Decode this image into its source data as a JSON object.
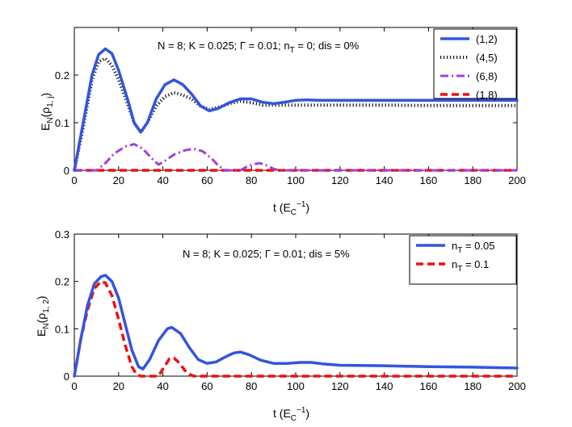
{
  "chart_data": [
    {
      "type": "line",
      "title": "",
      "annotation": "N = 8; K = 0.025; Γ = 0.01; n_T = 0; dis = 0%",
      "annotation_parts": {
        "a": "N = 8; K = 0.025; Γ = 0.01; n",
        "sub": "T",
        "b": " = 0; dis = 0%"
      },
      "xlabel": {
        "main": "t (E",
        "sub": "C",
        "sup": "−1",
        "close": ")"
      },
      "ylabel": {
        "main": "E",
        "sub1": "N",
        "mid": "(ρ",
        "sub2": "1, j",
        "close": ")"
      },
      "xlim": [
        0,
        200
      ],
      "ylim": [
        0,
        0.3
      ],
      "xticks": [
        0,
        20,
        40,
        60,
        80,
        100,
        120,
        140,
        160,
        180,
        200
      ],
      "xtick_labels": [
        "0",
        "20",
        "40",
        "60",
        "80",
        "100",
        "120",
        "140",
        "160",
        "180",
        "200"
      ],
      "yticks": [
        0,
        0.1,
        0.2
      ],
      "ytick_labels": [
        "0",
        "0.1",
        "0.2"
      ],
      "legend_position": "top-right",
      "series": [
        {
          "name": "(1,2)",
          "color": "#3355dd",
          "style": "solid",
          "points": [
            [
              0,
              0
            ],
            [
              4,
              0.1
            ],
            [
              8,
              0.2
            ],
            [
              11,
              0.243
            ],
            [
              14,
              0.255
            ],
            [
              17,
              0.245
            ],
            [
              20,
              0.21
            ],
            [
              24,
              0.15
            ],
            [
              27,
              0.1
            ],
            [
              30,
              0.08
            ],
            [
              33,
              0.1
            ],
            [
              37,
              0.15
            ],
            [
              41,
              0.18
            ],
            [
              45,
              0.19
            ],
            [
              49,
              0.18
            ],
            [
              53,
              0.16
            ],
            [
              57,
              0.135
            ],
            [
              61,
              0.125
            ],
            [
              65,
              0.13
            ],
            [
              70,
              0.142
            ],
            [
              75,
              0.15
            ],
            [
              80,
              0.15
            ],
            [
              85,
              0.143
            ],
            [
              90,
              0.14
            ],
            [
              95,
              0.143
            ],
            [
              100,
              0.147
            ],
            [
              105,
              0.148
            ],
            [
              110,
              0.147
            ],
            [
              120,
              0.147
            ],
            [
              140,
              0.147
            ],
            [
              160,
              0.147
            ],
            [
              180,
              0.147
            ],
            [
              200,
              0.147
            ]
          ]
        },
        {
          "name": "(4,5)",
          "color": "#111111",
          "style": "dotted",
          "points": [
            [
              0,
              0
            ],
            [
              4,
              0.09
            ],
            [
              8,
              0.19
            ],
            [
              11,
              0.228
            ],
            [
              14,
              0.235
            ],
            [
              17,
              0.22
            ],
            [
              20,
              0.19
            ],
            [
              24,
              0.14
            ],
            [
              27,
              0.1
            ],
            [
              30,
              0.08
            ],
            [
              33,
              0.1
            ],
            [
              37,
              0.135
            ],
            [
              41,
              0.155
            ],
            [
              45,
              0.163
            ],
            [
              49,
              0.158
            ],
            [
              53,
              0.15
            ],
            [
              57,
              0.135
            ],
            [
              61,
              0.128
            ],
            [
              65,
              0.132
            ],
            [
              70,
              0.14
            ],
            [
              75,
              0.145
            ],
            [
              80,
              0.142
            ],
            [
              85,
              0.137
            ],
            [
              90,
              0.137
            ],
            [
              100,
              0.137
            ],
            [
              120,
              0.137
            ],
            [
              140,
              0.137
            ],
            [
              160,
              0.136
            ],
            [
              180,
              0.136
            ],
            [
              200,
              0.136
            ]
          ]
        },
        {
          "name": "(6,8)",
          "color": "#a040e0",
          "style": "dashdot",
          "points": [
            [
              0,
              0
            ],
            [
              10,
              0
            ],
            [
              14,
              0.015
            ],
            [
              18,
              0.035
            ],
            [
              23,
              0.05
            ],
            [
              27,
              0.055
            ],
            [
              31,
              0.045
            ],
            [
              35,
              0.025
            ],
            [
              38,
              0.012
            ],
            [
              41,
              0.02
            ],
            [
              45,
              0.033
            ],
            [
              50,
              0.042
            ],
            [
              54,
              0.045
            ],
            [
              58,
              0.04
            ],
            [
              62,
              0.025
            ],
            [
              65,
              0.01
            ],
            [
              68,
              0
            ],
            [
              75,
              0
            ],
            [
              78,
              0.008
            ],
            [
              81,
              0.013
            ],
            [
              84,
              0.015
            ],
            [
              87,
              0.01
            ],
            [
              90,
              0.003
            ],
            [
              93,
              0
            ],
            [
              200,
              0
            ]
          ]
        },
        {
          "name": "(1,8)",
          "color": "#ee1111",
          "style": "dashed",
          "points": [
            [
              0,
              0
            ],
            [
              200,
              0
            ]
          ]
        }
      ]
    },
    {
      "type": "line",
      "title": "",
      "annotation": "N = 8; K = 0.025; Γ = 0.01; dis = 5%",
      "annotation_parts": {
        "a": "N = 8; K = 0.025; Γ = 0.01; dis = 5%"
      },
      "xlabel": {
        "main": "t (E",
        "sub": "C",
        "sup": "−1",
        "close": ")"
      },
      "ylabel": {
        "main": "E",
        "sub1": "N",
        "mid": "(ρ",
        "sub2": "1, 2",
        "close": ")"
      },
      "xlim": [
        0,
        200
      ],
      "ylim": [
        0,
        0.3
      ],
      "xticks": [
        0,
        20,
        40,
        60,
        80,
        100,
        120,
        140,
        160,
        180,
        200
      ],
      "xtick_labels": [
        "0",
        "20",
        "40",
        "60",
        "80",
        "100",
        "120",
        "140",
        "160",
        "180",
        "200"
      ],
      "yticks": [
        0,
        0.1,
        0.2,
        0.3
      ],
      "ytick_labels": [
        "0",
        "0.1",
        "0.2",
        "0.3"
      ],
      "legend_position": "top-right",
      "series": [
        {
          "name": "n_T = 0.05",
          "legend_main": "n",
          "legend_sub": "T",
          "legend_rest": " = 0.05",
          "color": "#3355dd",
          "style": "solid",
          "points": [
            [
              0,
              0
            ],
            [
              3,
              0.08
            ],
            [
              6,
              0.15
            ],
            [
              9,
              0.195
            ],
            [
              12,
              0.21
            ],
            [
              14,
              0.213
            ],
            [
              17,
              0.2
            ],
            [
              20,
              0.165
            ],
            [
              23,
              0.11
            ],
            [
              26,
              0.055
            ],
            [
              29,
              0.02
            ],
            [
              31,
              0.015
            ],
            [
              34,
              0.035
            ],
            [
              38,
              0.075
            ],
            [
              42,
              0.1
            ],
            [
              44,
              0.103
            ],
            [
              48,
              0.09
            ],
            [
              52,
              0.06
            ],
            [
              56,
              0.035
            ],
            [
              60,
              0.027
            ],
            [
              64,
              0.03
            ],
            [
              68,
              0.04
            ],
            [
              72,
              0.049
            ],
            [
              75,
              0.051
            ],
            [
              79,
              0.045
            ],
            [
              84,
              0.034
            ],
            [
              90,
              0.027
            ],
            [
              96,
              0.027
            ],
            [
              102,
              0.029
            ],
            [
              107,
              0.029
            ],
            [
              112,
              0.026
            ],
            [
              120,
              0.023
            ],
            [
              140,
              0.022
            ],
            [
              160,
              0.02
            ],
            [
              180,
              0.019
            ],
            [
              200,
              0.017
            ]
          ]
        },
        {
          "name": "n_T = 0.1",
          "legend_main": "n",
          "legend_sub": "T",
          "legend_rest": " = 0.1",
          "color": "#ee1111",
          "style": "dashed",
          "points": [
            [
              0,
              0
            ],
            [
              3,
              0.08
            ],
            [
              6,
              0.14
            ],
            [
              9,
              0.185
            ],
            [
              12,
              0.2
            ],
            [
              14,
              0.197
            ],
            [
              17,
              0.17
            ],
            [
              20,
              0.12
            ],
            [
              23,
              0.065
            ],
            [
              26,
              0.02
            ],
            [
              28,
              0.004
            ],
            [
              30,
              0
            ],
            [
              38,
              0
            ],
            [
              40,
              0.015
            ],
            [
              43,
              0.037
            ],
            [
              45,
              0.038
            ],
            [
              47,
              0.03
            ],
            [
              50,
              0.012
            ],
            [
              52,
              0.004
            ],
            [
              54,
              0
            ],
            [
              200,
              0
            ]
          ]
        }
      ]
    }
  ]
}
